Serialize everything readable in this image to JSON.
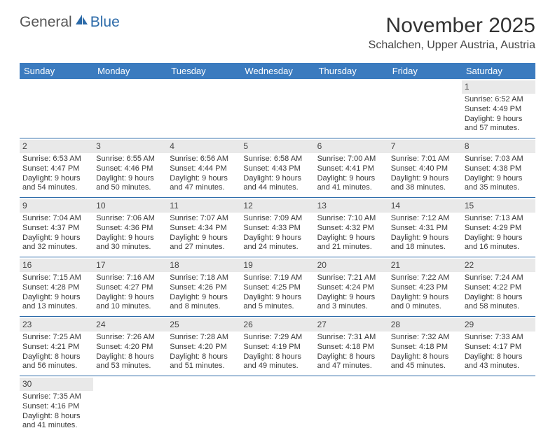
{
  "logo": {
    "general": "General",
    "blue": "Blue"
  },
  "title": "November 2025",
  "location": "Schalchen, Upper Austria, Austria",
  "colors": {
    "header_bg": "#3b7bbf",
    "header_text": "#ffffff",
    "daynum_bg": "#e9e9e9",
    "rule": "#2b6aa8",
    "logo_blue": "#2b6aa8"
  },
  "weekdays": [
    "Sunday",
    "Monday",
    "Tuesday",
    "Wednesday",
    "Thursday",
    "Friday",
    "Saturday"
  ],
  "weeks": [
    [
      {
        "n": "",
        "sr": "",
        "ss": "",
        "dl": ""
      },
      {
        "n": "",
        "sr": "",
        "ss": "",
        "dl": ""
      },
      {
        "n": "",
        "sr": "",
        "ss": "",
        "dl": ""
      },
      {
        "n": "",
        "sr": "",
        "ss": "",
        "dl": ""
      },
      {
        "n": "",
        "sr": "",
        "ss": "",
        "dl": ""
      },
      {
        "n": "",
        "sr": "",
        "ss": "",
        "dl": ""
      },
      {
        "n": "1",
        "sr": "Sunrise: 6:52 AM",
        "ss": "Sunset: 4:49 PM",
        "dl": "Daylight: 9 hours and 57 minutes."
      }
    ],
    [
      {
        "n": "2",
        "sr": "Sunrise: 6:53 AM",
        "ss": "Sunset: 4:47 PM",
        "dl": "Daylight: 9 hours and 54 minutes."
      },
      {
        "n": "3",
        "sr": "Sunrise: 6:55 AM",
        "ss": "Sunset: 4:46 PM",
        "dl": "Daylight: 9 hours and 50 minutes."
      },
      {
        "n": "4",
        "sr": "Sunrise: 6:56 AM",
        "ss": "Sunset: 4:44 PM",
        "dl": "Daylight: 9 hours and 47 minutes."
      },
      {
        "n": "5",
        "sr": "Sunrise: 6:58 AM",
        "ss": "Sunset: 4:43 PM",
        "dl": "Daylight: 9 hours and 44 minutes."
      },
      {
        "n": "6",
        "sr": "Sunrise: 7:00 AM",
        "ss": "Sunset: 4:41 PM",
        "dl": "Daylight: 9 hours and 41 minutes."
      },
      {
        "n": "7",
        "sr": "Sunrise: 7:01 AM",
        "ss": "Sunset: 4:40 PM",
        "dl": "Daylight: 9 hours and 38 minutes."
      },
      {
        "n": "8",
        "sr": "Sunrise: 7:03 AM",
        "ss": "Sunset: 4:38 PM",
        "dl": "Daylight: 9 hours and 35 minutes."
      }
    ],
    [
      {
        "n": "9",
        "sr": "Sunrise: 7:04 AM",
        "ss": "Sunset: 4:37 PM",
        "dl": "Daylight: 9 hours and 32 minutes."
      },
      {
        "n": "10",
        "sr": "Sunrise: 7:06 AM",
        "ss": "Sunset: 4:36 PM",
        "dl": "Daylight: 9 hours and 30 minutes."
      },
      {
        "n": "11",
        "sr": "Sunrise: 7:07 AM",
        "ss": "Sunset: 4:34 PM",
        "dl": "Daylight: 9 hours and 27 minutes."
      },
      {
        "n": "12",
        "sr": "Sunrise: 7:09 AM",
        "ss": "Sunset: 4:33 PM",
        "dl": "Daylight: 9 hours and 24 minutes."
      },
      {
        "n": "13",
        "sr": "Sunrise: 7:10 AM",
        "ss": "Sunset: 4:32 PM",
        "dl": "Daylight: 9 hours and 21 minutes."
      },
      {
        "n": "14",
        "sr": "Sunrise: 7:12 AM",
        "ss": "Sunset: 4:31 PM",
        "dl": "Daylight: 9 hours and 18 minutes."
      },
      {
        "n": "15",
        "sr": "Sunrise: 7:13 AM",
        "ss": "Sunset: 4:29 PM",
        "dl": "Daylight: 9 hours and 16 minutes."
      }
    ],
    [
      {
        "n": "16",
        "sr": "Sunrise: 7:15 AM",
        "ss": "Sunset: 4:28 PM",
        "dl": "Daylight: 9 hours and 13 minutes."
      },
      {
        "n": "17",
        "sr": "Sunrise: 7:16 AM",
        "ss": "Sunset: 4:27 PM",
        "dl": "Daylight: 9 hours and 10 minutes."
      },
      {
        "n": "18",
        "sr": "Sunrise: 7:18 AM",
        "ss": "Sunset: 4:26 PM",
        "dl": "Daylight: 9 hours and 8 minutes."
      },
      {
        "n": "19",
        "sr": "Sunrise: 7:19 AM",
        "ss": "Sunset: 4:25 PM",
        "dl": "Daylight: 9 hours and 5 minutes."
      },
      {
        "n": "20",
        "sr": "Sunrise: 7:21 AM",
        "ss": "Sunset: 4:24 PM",
        "dl": "Daylight: 9 hours and 3 minutes."
      },
      {
        "n": "21",
        "sr": "Sunrise: 7:22 AM",
        "ss": "Sunset: 4:23 PM",
        "dl": "Daylight: 9 hours and 0 minutes."
      },
      {
        "n": "22",
        "sr": "Sunrise: 7:24 AM",
        "ss": "Sunset: 4:22 PM",
        "dl": "Daylight: 8 hours and 58 minutes."
      }
    ],
    [
      {
        "n": "23",
        "sr": "Sunrise: 7:25 AM",
        "ss": "Sunset: 4:21 PM",
        "dl": "Daylight: 8 hours and 56 minutes."
      },
      {
        "n": "24",
        "sr": "Sunrise: 7:26 AM",
        "ss": "Sunset: 4:20 PM",
        "dl": "Daylight: 8 hours and 53 minutes."
      },
      {
        "n": "25",
        "sr": "Sunrise: 7:28 AM",
        "ss": "Sunset: 4:20 PM",
        "dl": "Daylight: 8 hours and 51 minutes."
      },
      {
        "n": "26",
        "sr": "Sunrise: 7:29 AM",
        "ss": "Sunset: 4:19 PM",
        "dl": "Daylight: 8 hours and 49 minutes."
      },
      {
        "n": "27",
        "sr": "Sunrise: 7:31 AM",
        "ss": "Sunset: 4:18 PM",
        "dl": "Daylight: 8 hours and 47 minutes."
      },
      {
        "n": "28",
        "sr": "Sunrise: 7:32 AM",
        "ss": "Sunset: 4:18 PM",
        "dl": "Daylight: 8 hours and 45 minutes."
      },
      {
        "n": "29",
        "sr": "Sunrise: 7:33 AM",
        "ss": "Sunset: 4:17 PM",
        "dl": "Daylight: 8 hours and 43 minutes."
      }
    ],
    [
      {
        "n": "30",
        "sr": "Sunrise: 7:35 AM",
        "ss": "Sunset: 4:16 PM",
        "dl": "Daylight: 8 hours and 41 minutes."
      },
      {
        "n": "",
        "sr": "",
        "ss": "",
        "dl": ""
      },
      {
        "n": "",
        "sr": "",
        "ss": "",
        "dl": ""
      },
      {
        "n": "",
        "sr": "",
        "ss": "",
        "dl": ""
      },
      {
        "n": "",
        "sr": "",
        "ss": "",
        "dl": ""
      },
      {
        "n": "",
        "sr": "",
        "ss": "",
        "dl": ""
      },
      {
        "n": "",
        "sr": "",
        "ss": "",
        "dl": ""
      }
    ]
  ]
}
